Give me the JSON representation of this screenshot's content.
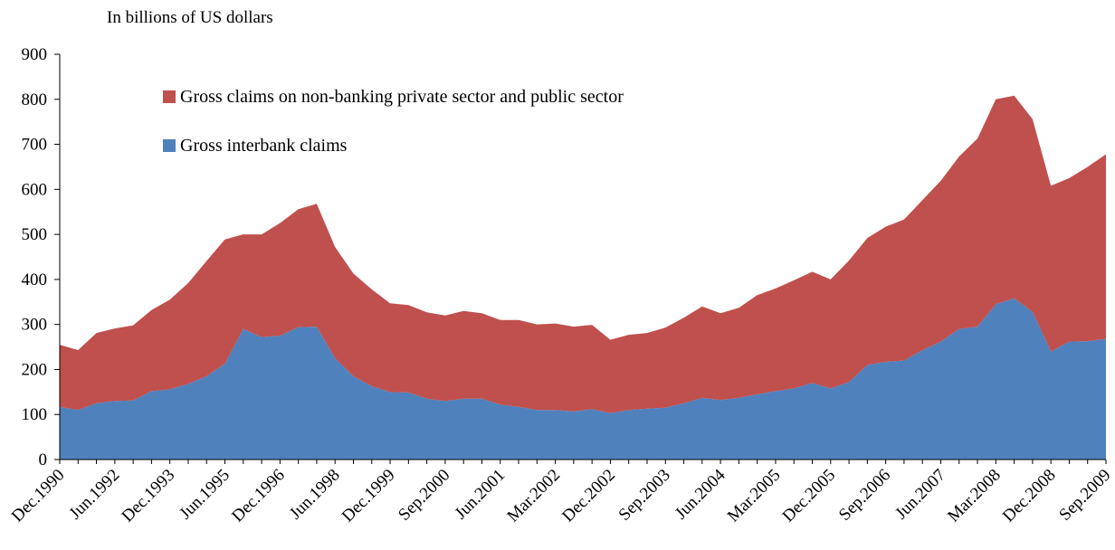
{
  "chart_data": {
    "type": "area",
    "stacked": true,
    "ylabel": "In billions of US dollars",
    "ylim": [
      0,
      900
    ],
    "yticks": [
      0,
      100,
      200,
      300,
      400,
      500,
      600,
      700,
      800,
      900
    ],
    "grid": false,
    "legend_position": "top-left inside plot",
    "x_tick_labels": [
      "Dec.1990",
      "Jun.1992",
      "Dec.1993",
      "Jun.1995",
      "Dec.1996",
      "Jun.1998",
      "Dec.1999",
      "Sep.2000",
      "Jun.2001",
      "Mar.2002",
      "Dec.2002",
      "Sep.2003",
      "Jun.2004",
      "Mar.2005",
      "Dec.2005",
      "Sep.2006",
      "Jun.2007",
      "Mar.2008",
      "Dec.2008",
      "Sep.2009"
    ],
    "series": [
      {
        "name": "Gross interbank claims",
        "color": "#4F81BD",
        "values": [
          117,
          110,
          125,
          130,
          131,
          152,
          156,
          168,
          185,
          213,
          290,
          272,
          275,
          294,
          295,
          225,
          185,
          163,
          150,
          149,
          135,
          130,
          135,
          135,
          122,
          117,
          110,
          110,
          107,
          112,
          103,
          110,
          113,
          115,
          125,
          137,
          132,
          137,
          145,
          152,
          158,
          170,
          158,
          172,
          210,
          217,
          220,
          243,
          262,
          290,
          295,
          345,
          358,
          328,
          240,
          262,
          263,
          268
        ]
      },
      {
        "name": "Gross claims on non-banking private sector and public sector",
        "color": "#C0504D",
        "values": [
          138,
          133,
          156,
          161,
          167,
          180,
          199,
          224,
          256,
          276,
          210,
          228,
          250,
          262,
          273,
          247,
          228,
          215,
          197,
          194,
          192,
          190,
          195,
          190,
          188,
          193,
          190,
          192,
          188,
          187,
          163,
          167,
          168,
          178,
          190,
          203,
          193,
          200,
          220,
          228,
          240,
          247,
          242,
          270,
          282,
          300,
          313,
          333,
          357,
          383,
          418,
          455,
          450,
          428,
          368,
          363,
          387,
          410
        ]
      }
    ]
  }
}
